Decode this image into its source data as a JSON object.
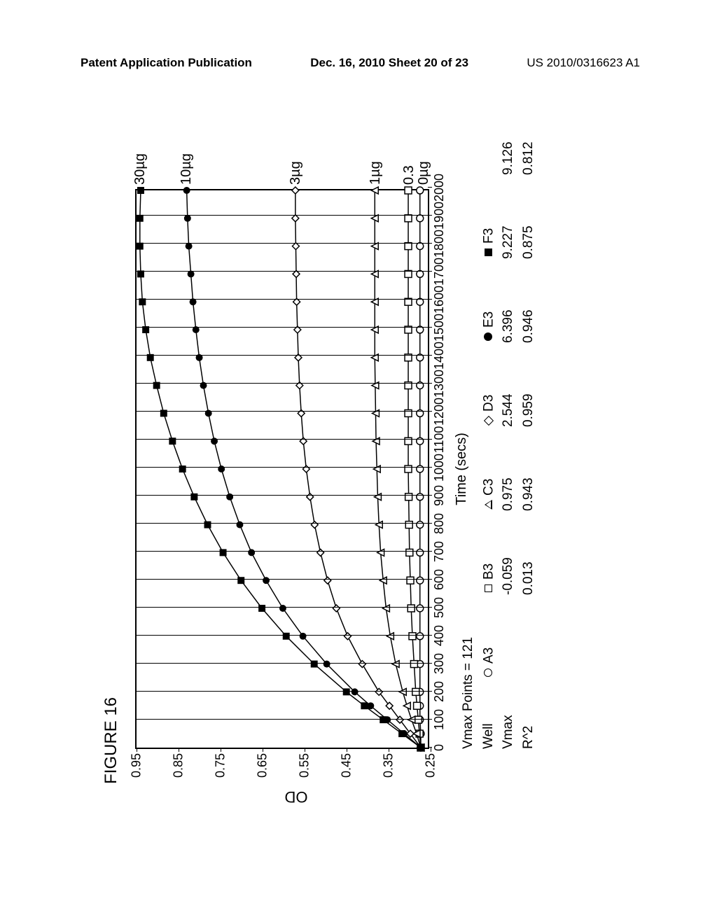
{
  "header": {
    "left": "Patent Application Publication",
    "center": "Dec. 16, 2010  Sheet 20 of 23",
    "right": "US 2010/0316623 A1"
  },
  "figure": {
    "title": "FIGURE 16",
    "ylabel": "OD",
    "xlabel": "Time (secs)",
    "xlim": [
      0,
      2000
    ],
    "ylim": [
      0.25,
      0.95
    ],
    "xtick_step": 100,
    "ytick_step": 0.1,
    "y_start": 0.25,
    "grid_x_step": 100,
    "background_color": "#ffffff",
    "axis_color": "#000000",
    "font_size_ticks": 18,
    "font_size_labels": 22,
    "series_labels": [
      {
        "text": "30µg",
        "x": 2010,
        "y": 0.94
      },
      {
        "text": "10µg",
        "x": 2010,
        "y": 0.83
      },
      {
        "text": "3µg",
        "x": 2010,
        "y": 0.57
      },
      {
        "text": "1µg",
        "x": 2010,
        "y": 0.38
      },
      {
        "text": "0.3",
        "x": 2010,
        "y": 0.3
      },
      {
        "text": "0µg",
        "x": 2010,
        "y": 0.265
      }
    ],
    "series": [
      {
        "name": "A3",
        "marker": "open-circle",
        "label": "0µg",
        "color": "#000000",
        "points": [
          [
            0,
            0.27
          ],
          [
            50,
            0.27
          ],
          [
            100,
            0.272
          ],
          [
            150,
            0.272
          ],
          [
            200,
            0.272
          ],
          [
            300,
            0.272
          ],
          [
            400,
            0.272
          ],
          [
            500,
            0.272
          ],
          [
            600,
            0.272
          ],
          [
            700,
            0.272
          ],
          [
            800,
            0.272
          ],
          [
            900,
            0.272
          ],
          [
            1000,
            0.272
          ],
          [
            1100,
            0.272
          ],
          [
            1200,
            0.272
          ],
          [
            1300,
            0.272
          ],
          [
            1400,
            0.272
          ],
          [
            1500,
            0.272
          ],
          [
            1600,
            0.272
          ],
          [
            1700,
            0.272
          ],
          [
            1800,
            0.272
          ],
          [
            1900,
            0.272
          ],
          [
            2000,
            0.272
          ]
        ]
      },
      {
        "name": "B3",
        "marker": "open-square",
        "label": "0.3",
        "color": "#000000",
        "points": [
          [
            0,
            0.27
          ],
          [
            50,
            0.273
          ],
          [
            100,
            0.276
          ],
          [
            150,
            0.279
          ],
          [
            200,
            0.282
          ],
          [
            300,
            0.286
          ],
          [
            400,
            0.29
          ],
          [
            500,
            0.293
          ],
          [
            600,
            0.295
          ],
          [
            700,
            0.297
          ],
          [
            800,
            0.298
          ],
          [
            900,
            0.299
          ],
          [
            1000,
            0.3
          ],
          [
            1100,
            0.3
          ],
          [
            1200,
            0.3
          ],
          [
            1300,
            0.3
          ],
          [
            1400,
            0.3
          ],
          [
            1500,
            0.3
          ],
          [
            1600,
            0.3
          ],
          [
            1700,
            0.3
          ],
          [
            1800,
            0.3
          ],
          [
            1900,
            0.3
          ],
          [
            2000,
            0.3
          ]
        ]
      },
      {
        "name": "C3",
        "marker": "open-triangle",
        "label": "1µg",
        "color": "#000000",
        "points": [
          [
            0,
            0.27
          ],
          [
            50,
            0.28
          ],
          [
            100,
            0.292
          ],
          [
            150,
            0.303
          ],
          [
            200,
            0.313
          ],
          [
            300,
            0.33
          ],
          [
            400,
            0.343
          ],
          [
            500,
            0.353
          ],
          [
            600,
            0.36
          ],
          [
            700,
            0.366
          ],
          [
            800,
            0.37
          ],
          [
            900,
            0.373
          ],
          [
            1000,
            0.375
          ],
          [
            1100,
            0.377
          ],
          [
            1200,
            0.378
          ],
          [
            1300,
            0.379
          ],
          [
            1400,
            0.38
          ],
          [
            1500,
            0.38
          ],
          [
            1600,
            0.38
          ],
          [
            1700,
            0.38
          ],
          [
            1800,
            0.38
          ],
          [
            1900,
            0.38
          ],
          [
            2000,
            0.38
          ]
        ]
      },
      {
        "name": "D3",
        "marker": "open-diamond",
        "label": "3µg",
        "color": "#000000",
        "points": [
          [
            0,
            0.27
          ],
          [
            50,
            0.295
          ],
          [
            100,
            0.32
          ],
          [
            150,
            0.345
          ],
          [
            200,
            0.37
          ],
          [
            300,
            0.41
          ],
          [
            400,
            0.445
          ],
          [
            500,
            0.472
          ],
          [
            600,
            0.493
          ],
          [
            700,
            0.51
          ],
          [
            800,
            0.524
          ],
          [
            900,
            0.535
          ],
          [
            1000,
            0.544
          ],
          [
            1100,
            0.551
          ],
          [
            1200,
            0.556
          ],
          [
            1300,
            0.56
          ],
          [
            1400,
            0.563
          ],
          [
            1500,
            0.565
          ],
          [
            1600,
            0.567
          ],
          [
            1700,
            0.568
          ],
          [
            1800,
            0.569
          ],
          [
            1900,
            0.57
          ],
          [
            2000,
            0.57
          ]
        ]
      },
      {
        "name": "E3",
        "marker": "fill-circle",
        "label": "10µg",
        "color": "#000000",
        "points": [
          [
            0,
            0.27
          ],
          [
            50,
            0.31
          ],
          [
            100,
            0.35
          ],
          [
            150,
            0.39
          ],
          [
            200,
            0.428
          ],
          [
            300,
            0.495
          ],
          [
            400,
            0.552
          ],
          [
            500,
            0.6
          ],
          [
            600,
            0.64
          ],
          [
            700,
            0.675
          ],
          [
            800,
            0.703
          ],
          [
            900,
            0.727
          ],
          [
            1000,
            0.747
          ],
          [
            1100,
            0.764
          ],
          [
            1200,
            0.778
          ],
          [
            1300,
            0.79
          ],
          [
            1400,
            0.8
          ],
          [
            1500,
            0.808
          ],
          [
            1600,
            0.815
          ],
          [
            1700,
            0.82
          ],
          [
            1800,
            0.825
          ],
          [
            1900,
            0.828
          ],
          [
            2000,
            0.83
          ]
        ]
      },
      {
        "name": "F3",
        "marker": "fill-square",
        "label": "30µg",
        "color": "#000000",
        "points": [
          [
            0,
            0.27
          ],
          [
            50,
            0.315
          ],
          [
            100,
            0.36
          ],
          [
            150,
            0.405
          ],
          [
            200,
            0.448
          ],
          [
            300,
            0.525
          ],
          [
            400,
            0.592
          ],
          [
            500,
            0.65
          ],
          [
            600,
            0.7
          ],
          [
            700,
            0.743
          ],
          [
            800,
            0.78
          ],
          [
            900,
            0.812
          ],
          [
            1000,
            0.84
          ],
          [
            1100,
            0.864
          ],
          [
            1200,
            0.885
          ],
          [
            1300,
            0.902
          ],
          [
            1400,
            0.917
          ],
          [
            1500,
            0.928
          ],
          [
            1600,
            0.936
          ],
          [
            1700,
            0.94
          ],
          [
            1800,
            0.942
          ],
          [
            1900,
            0.942
          ],
          [
            2000,
            0.94
          ]
        ]
      }
    ],
    "legend": {
      "vmax_points": "Vmax Points = 121",
      "rows": [
        {
          "label": "Well",
          "cells": [
            "A3",
            "B3",
            "C3",
            "D3",
            "E3",
            "F3"
          ],
          "showMarkers": true
        },
        {
          "label": "Vmax",
          "cells": [
            "",
            "-0.059",
            "0.975",
            "2.544",
            "6.396",
            "9.227",
            "9.126"
          ]
        },
        {
          "label": "R^2",
          "cells": [
            "",
            "0.013",
            "0.943",
            "0.959",
            "0.946",
            "0.875",
            "0.812"
          ]
        }
      ],
      "markers": [
        "open-circle",
        "open-square",
        "open-triangle",
        "open-diamond",
        "fill-circle",
        "fill-square"
      ]
    }
  }
}
